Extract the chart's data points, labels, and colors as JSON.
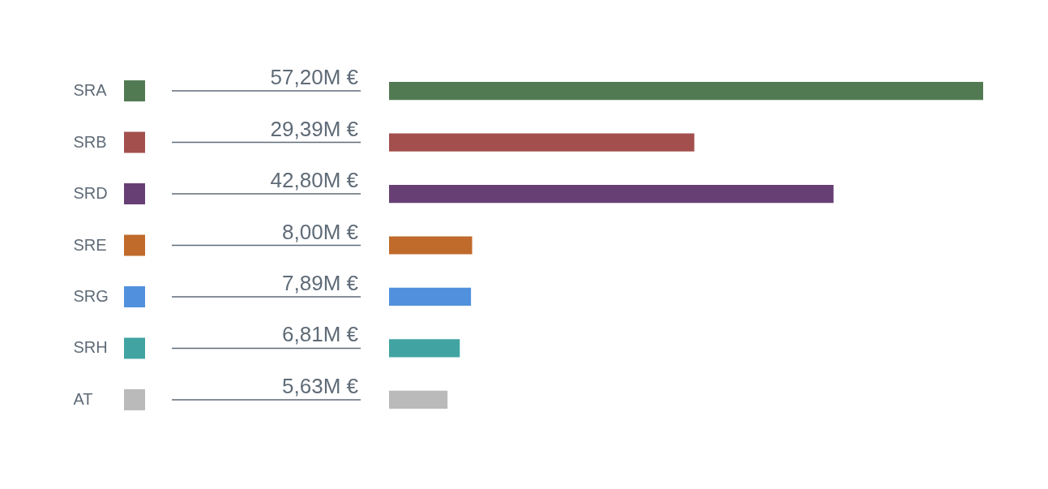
{
  "chart_data": {
    "type": "bar",
    "orientation": "horizontal",
    "categories": [
      "SRA",
      "SRB",
      "SRD",
      "SRE",
      "SRG",
      "SRH",
      "AT"
    ],
    "values": [
      57.2,
      29.39,
      42.8,
      8.0,
      7.89,
      6.81,
      5.63
    ],
    "colors": [
      "#527a52",
      "#a34f4e",
      "#673f75",
      "#c06a2b",
      "#5190dc",
      "#41a4a2",
      "#bababa"
    ],
    "value_labels": [
      "57,20M €",
      "29,39M €",
      "42,80M €",
      "8,00M €",
      "7,89M €",
      "6,81M €",
      "5,63M €"
    ]
  }
}
